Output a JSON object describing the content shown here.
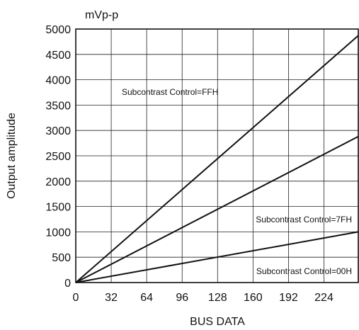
{
  "chart_data": {
    "type": "line",
    "unit_label": "mVp-p",
    "xlabel": "BUS DATA",
    "ylabel": "Output amplitude",
    "xlim": [
      0,
      255
    ],
    "ylim": [
      0,
      5000
    ],
    "x_ticks": [
      0,
      32,
      64,
      96,
      128,
      160,
      192,
      224
    ],
    "y_ticks": [
      0,
      500,
      1000,
      1500,
      2000,
      2500,
      3000,
      3500,
      4000,
      4500,
      5000
    ],
    "grid": true,
    "series": [
      {
        "name": "Subcontrast Control=FFH",
        "x": [
          0,
          255
        ],
        "y": [
          0,
          4870
        ]
      },
      {
        "name": "Subcontrast Control=7FH",
        "x": [
          0,
          255
        ],
        "y": [
          0,
          2880
        ]
      },
      {
        "name": "Subcontrast Control=00H",
        "x": [
          0,
          255
        ],
        "y": [
          0,
          1000
        ]
      }
    ]
  }
}
